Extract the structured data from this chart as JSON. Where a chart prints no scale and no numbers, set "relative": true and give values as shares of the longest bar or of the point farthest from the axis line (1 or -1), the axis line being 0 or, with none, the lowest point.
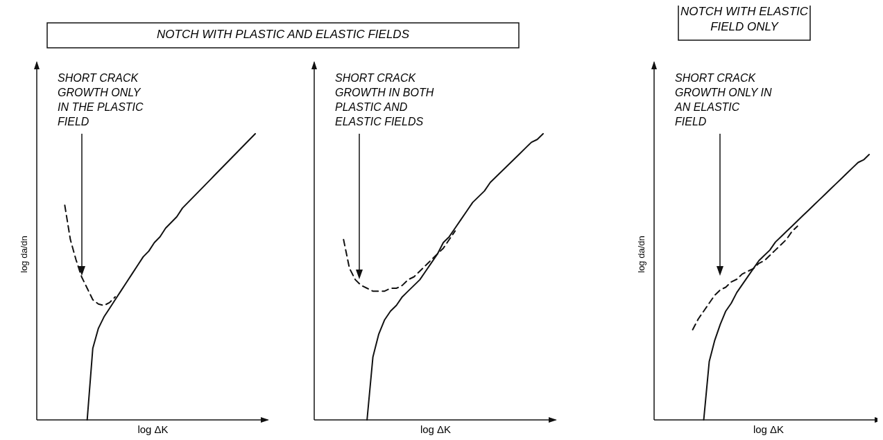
{
  "chart_data": [
    {
      "type": "line",
      "title": "NOTCH WITH PLASTIC AND ELASTIC FIELDS",
      "xlabel": "log ΔK",
      "ylabel": "log da/dn",
      "relative": true,
      "marker": "none",
      "categories": [
        null,
        null,
        null,
        null,
        null,
        null,
        null,
        null,
        null,
        null,
        null,
        null,
        null,
        null,
        null,
        null,
        null,
        null,
        null,
        null,
        null,
        null,
        null,
        null,
        null,
        null,
        null,
        null,
        null,
        null,
        null,
        null,
        null,
        null,
        null,
        null,
        null,
        null,
        null,
        null
      ],
      "annotations": [
        "SHORT CRACK\nGROWTH ONLY\nIN THE PLASTIC\nFIELD"
      ],
      "series": [
        {
          "color": "#111111",
          "line_style": "solid",
          "values": [
            null,
            null,
            null,
            null,
            null,
            null,
            null,
            null,
            null,
            0,
            0.25,
            0.32,
            0.36,
            0.39,
            0.42,
            0.45,
            0.48,
            0.51,
            0.54,
            0.57,
            0.59,
            0.62,
            0.64,
            0.67,
            0.69,
            0.71,
            0.74,
            0.76,
            0.78,
            0.8,
            0.82,
            0.84,
            0.86,
            0.88,
            0.9,
            0.92,
            0.94,
            0.96,
            0.98,
            1
          ]
        },
        {
          "color": "#111111",
          "line_style": "dashed",
          "values": [
            null,
            null,
            null,
            null,
            null,
            0.75,
            0.63,
            0.56,
            0.5,
            0.46,
            0.42,
            0.405,
            0.4,
            0.41,
            0.43,
            null,
            null,
            null,
            null,
            null,
            null,
            null,
            null,
            null,
            null,
            null,
            null,
            null,
            null,
            null,
            null,
            null,
            null,
            null,
            null,
            null,
            null,
            null,
            null,
            null
          ]
        }
      ]
    },
    {
      "type": "line",
      "xlabel": "log ΔK",
      "relative": true,
      "marker": "none",
      "categories": [
        null,
        null,
        null,
        null,
        null,
        null,
        null,
        null,
        null,
        null,
        null,
        null,
        null,
        null,
        null,
        null,
        null,
        null,
        null,
        null,
        null,
        null,
        null,
        null,
        null,
        null,
        null,
        null,
        null,
        null,
        null,
        null,
        null,
        null,
        null,
        null,
        null,
        null,
        null,
        null
      ],
      "annotations": [
        "SHORT CRACK\nGROWTH IN BOTH\nPLASTIC AND\nELASTIC FIELDS"
      ],
      "series": [
        {
          "color": "#111111",
          "line_style": "solid",
          "values": [
            null,
            null,
            null,
            null,
            null,
            null,
            null,
            null,
            null,
            0,
            0.22,
            0.3,
            0.35,
            0.38,
            0.4,
            0.43,
            0.45,
            0.47,
            0.49,
            0.52,
            0.55,
            0.58,
            0.62,
            0.64,
            0.67,
            0.7,
            0.73,
            0.76,
            0.78,
            0.8,
            0.83,
            0.85,
            0.87,
            0.89,
            0.91,
            0.93,
            0.95,
            0.97,
            0.98,
            1
          ]
        },
        {
          "color": "#111111",
          "line_style": "dashed",
          "values": [
            null,
            null,
            null,
            null,
            null,
            0.63,
            0.53,
            0.49,
            0.47,
            0.46,
            0.45,
            0.45,
            0.45,
            0.46,
            0.46,
            0.47,
            0.49,
            0.5,
            0.52,
            0.54,
            0.56,
            0.58,
            0.6,
            0.63,
            0.66,
            null,
            null,
            null,
            null,
            null,
            null,
            null,
            null,
            null,
            null,
            null,
            null,
            null,
            null,
            null
          ]
        }
      ]
    },
    {
      "type": "line",
      "title": "NOTCH WITH ELASTIC\nFIELD ONLY",
      "xlabel": "log ΔK",
      "ylabel": "log da/dn",
      "relative": true,
      "marker": "none",
      "categories": [
        null,
        null,
        null,
        null,
        null,
        null,
        null,
        null,
        null,
        null,
        null,
        null,
        null,
        null,
        null,
        null,
        null,
        null,
        null,
        null,
        null,
        null,
        null,
        null,
        null,
        null,
        null,
        null,
        null,
        null,
        null,
        null,
        null,
        null,
        null,
        null,
        null,
        null,
        null,
        null
      ],
      "annotations": [
        "SHORT CRACK\nGROWTH ONLY IN\nAN ELASTIC\nFIELD"
      ],
      "series": [
        {
          "color": "#111111",
          "line_style": "solid",
          "values": [
            null,
            null,
            null,
            null,
            null,
            null,
            null,
            null,
            null,
            0,
            0.22,
            0.3,
            0.36,
            0.41,
            0.44,
            0.48,
            0.51,
            0.54,
            0.57,
            0.6,
            0.62,
            0.64,
            0.67,
            0.69,
            0.71,
            0.73,
            0.75,
            0.77,
            0.79,
            0.81,
            0.83,
            0.85,
            0.87,
            0.89,
            0.91,
            0.93,
            0.95,
            0.97,
            0.98,
            1
          ]
        },
        {
          "color": "#111111",
          "line_style": "dashed",
          "values": [
            null,
            null,
            null,
            null,
            null,
            null,
            null,
            0.34,
            0.38,
            0.41,
            0.44,
            0.47,
            0.49,
            0.5,
            0.52,
            0.53,
            0.55,
            0.56,
            0.57,
            0.59,
            0.6,
            0.62,
            0.64,
            0.66,
            0.68,
            0.71,
            0.73,
            null,
            null,
            null,
            null,
            null,
            null,
            null,
            null,
            null,
            null,
            null,
            null,
            null
          ]
        }
      ]
    }
  ]
}
